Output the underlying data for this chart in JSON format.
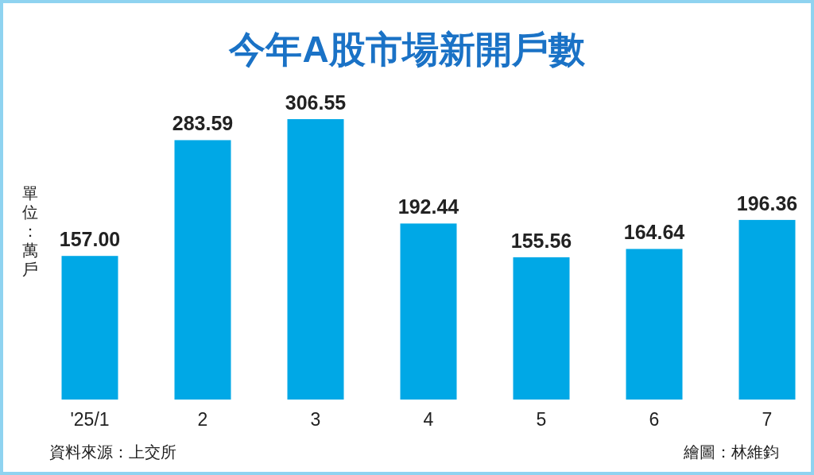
{
  "chart_data": {
    "type": "bar",
    "title": "今年A股市場新開戶數",
    "ylabel": "單位：萬戶",
    "categories": [
      "'25/1",
      "2",
      "3",
      "4",
      "5",
      "6",
      "7"
    ],
    "values": [
      157.0,
      283.59,
      306.55,
      192.44,
      155.56,
      164.64,
      196.36
    ],
    "value_labels": [
      "157.00",
      "283.59",
      "306.55",
      "192.44",
      "155.56",
      "164.64",
      "196.36"
    ],
    "color": "#00a8e6",
    "annotations": [
      "資料來源：上交所",
      "繪圖：林維鈞"
    ]
  }
}
